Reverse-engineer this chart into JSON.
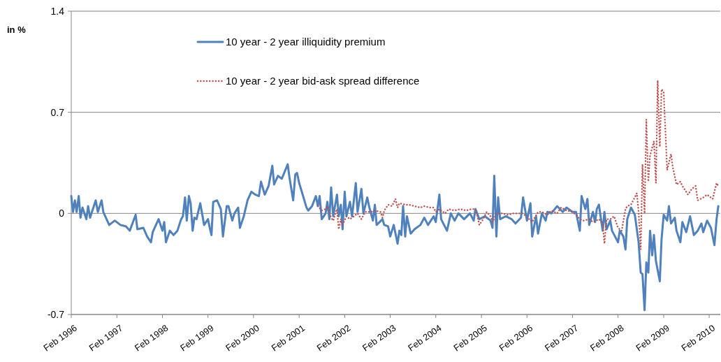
{
  "chart_data": {
    "type": "line",
    "ylabel": "in %",
    "xlim": [
      "1996-02-01",
      "2010-05-01"
    ],
    "ylim": [
      -0.7,
      1.4
    ],
    "yticks": [
      -0.7,
      0,
      0.7,
      1.4
    ],
    "xticks": [
      {
        "value": "1996-02-01",
        "label": "Feb 1996"
      },
      {
        "value": "1997-02-01",
        "label": "Feb 1997"
      },
      {
        "value": "1998-02-01",
        "label": "Feb 1998"
      },
      {
        "value": "1999-02-01",
        "label": "Feb 1999"
      },
      {
        "value": "2000-02-01",
        "label": "Feb 2000"
      },
      {
        "value": "2001-02-01",
        "label": "Feb 2001"
      },
      {
        "value": "2002-02-01",
        "label": "Feb 2002"
      },
      {
        "value": "2003-02-01",
        "label": "Feb 2003"
      },
      {
        "value": "2004-02-01",
        "label": "Feb 2004"
      },
      {
        "value": "2005-02-01",
        "label": "Feb 2005"
      },
      {
        "value": "2006-02-01",
        "label": "Feb 2006"
      },
      {
        "value": "2007-02-01",
        "label": "Feb 2007"
      },
      {
        "value": "2008-02-01",
        "label": "Feb 2008"
      },
      {
        "value": "2009-02-01",
        "label": "Feb 2009"
      },
      {
        "value": "2010-02-01",
        "label": "Feb 2010"
      }
    ],
    "grid": "y",
    "legend": "top",
    "series": [
      {
        "name": "10 year - 2 year illiquidity premium",
        "color": "#4f81bd",
        "line_style": "solid",
        "x": [
          "1996-02-01",
          "1996-02-15",
          "1996-03-01",
          "1996-03-15",
          "1996-04-01",
          "1996-04-15",
          "1996-05-01",
          "1996-06-01",
          "1996-06-15",
          "1996-07-01",
          "1996-08-15",
          "1996-09-01",
          "1996-10-01",
          "1996-10-15",
          "1996-12-01",
          "1997-01-15",
          "1997-03-01",
          "1997-04-15",
          "1997-05-15",
          "1997-07-01",
          "1997-07-15",
          "1997-09-01",
          "1997-10-01",
          "1997-11-01",
          "1997-11-15",
          "1998-01-01",
          "1998-02-01",
          "1998-02-15",
          "1998-03-01",
          "1998-04-01",
          "1998-05-01",
          "1998-06-01",
          "1998-07-01",
          "1998-07-15",
          "1998-08-01",
          "1998-08-15",
          "1998-09-01",
          "1998-09-15",
          "1998-10-01",
          "1998-10-15",
          "1998-11-01",
          "1998-12-01",
          "1999-01-01",
          "1999-02-01",
          "1999-02-15",
          "1999-03-01",
          "1999-03-15",
          "1999-04-15",
          "1999-05-15",
          "1999-06-01",
          "1999-07-01",
          "1999-07-15",
          "1999-08-15",
          "1999-09-01",
          "1999-10-01",
          "1999-10-15",
          "1999-11-15",
          "1999-12-15",
          "2000-01-15",
          "2000-02-15",
          "2000-03-15",
          "2000-04-01",
          "2000-05-01",
          "2000-06-01",
          "2000-07-01",
          "2000-07-15",
          "2000-08-15",
          "2000-09-15",
          "2000-11-01",
          "2000-11-15",
          "2000-12-15",
          "2001-01-01",
          "2001-01-15",
          "2001-02-01",
          "2001-03-01",
          "2001-04-01",
          "2001-04-15",
          "2001-05-15",
          "2001-06-15",
          "2001-07-01",
          "2001-07-15",
          "2001-08-01",
          "2001-09-01",
          "2001-09-15",
          "2001-10-01",
          "2001-10-15",
          "2001-11-01",
          "2001-12-01",
          "2001-12-15",
          "2002-01-01",
          "2002-01-15",
          "2002-02-01",
          "2002-02-15",
          "2002-03-15",
          "2002-04-01",
          "2002-05-01",
          "2002-05-15",
          "2002-06-15",
          "2002-07-01",
          "2002-08-01",
          "2002-08-15",
          "2002-09-15",
          "2002-10-01",
          "2002-10-15",
          "2002-12-01",
          "2002-12-15",
          "2003-01-15",
          "2003-02-01",
          "2003-03-01",
          "2003-04-01",
          "2003-04-15",
          "2003-05-01",
          "2003-05-15",
          "2003-06-01",
          "2003-06-15",
          "2003-07-15",
          "2003-08-15",
          "2003-10-01",
          "2003-11-01",
          "2003-12-01",
          "2004-01-15",
          "2004-02-01",
          "2004-03-01",
          "2004-03-15",
          "2004-05-01",
          "2004-06-01",
          "2004-07-01",
          "2004-08-01",
          "2004-09-15",
          "2004-11-01",
          "2004-12-01",
          "2004-12-15",
          "2005-01-15",
          "2005-03-01",
          "2005-04-15",
          "2005-05-01",
          "2005-05-15",
          "2005-06-01",
          "2005-06-15",
          "2005-07-01",
          "2005-08-15",
          "2005-10-01",
          "2005-11-01",
          "2005-12-15",
          "2006-01-01",
          "2006-02-01",
          "2006-03-01",
          "2006-03-15",
          "2006-04-15",
          "2006-05-01",
          "2006-06-01",
          "2006-07-01",
          "2006-07-15",
          "2006-08-15",
          "2006-10-01",
          "2006-11-15",
          "2006-12-15",
          "2007-02-01",
          "2007-03-01",
          "2007-04-01",
          "2007-04-15",
          "2007-05-15",
          "2007-06-01",
          "2007-06-15",
          "2007-07-15",
          "2007-08-01",
          "2007-08-15",
          "2007-09-01",
          "2007-10-01",
          "2007-10-15",
          "2007-11-01",
          "2007-12-01",
          "2007-12-15",
          "2008-02-01",
          "2008-02-15",
          "2008-03-15",
          "2008-04-01",
          "2008-04-15",
          "2008-05-15",
          "2008-06-15",
          "2008-07-15",
          "2008-08-01",
          "2008-08-15",
          "2008-09-01",
          "2008-09-15",
          "2008-10-01",
          "2008-10-15",
          "2008-11-01",
          "2008-11-15",
          "2008-12-01",
          "2009-01-01",
          "2009-01-15",
          "2009-02-01",
          "2009-03-01",
          "2009-03-15",
          "2009-04-01",
          "2009-05-01",
          "2009-05-15",
          "2009-06-15",
          "2009-07-01",
          "2009-08-01",
          "2009-09-01",
          "2009-10-01",
          "2009-11-01",
          "2009-12-01",
          "2009-12-15",
          "2010-01-15",
          "2010-02-15",
          "2010-03-15",
          "2010-04-01",
          "2010-04-15"
        ],
        "values": [
          0.12,
          0.01,
          0.09,
          0.01,
          0.12,
          -0.03,
          0.04,
          -0.04,
          0.05,
          -0.03,
          0.09,
          0.01,
          0.09,
          0.01,
          -0.08,
          -0.05,
          -0.08,
          -0.09,
          -0.12,
          -0.01,
          -0.11,
          -0.1,
          -0.16,
          -0.2,
          -0.13,
          -0.04,
          -0.12,
          -0.06,
          -0.2,
          -0.12,
          -0.15,
          -0.12,
          -0.04,
          -0.02,
          0.11,
          -0.05,
          0.12,
          0.07,
          -0.12,
          -0.03,
          -0.04,
          0.07,
          -0.08,
          -0.04,
          -0.1,
          -0.15,
          0.08,
          0.09,
          0.03,
          -0.16,
          0.05,
          0.05,
          -0.05,
          0.0,
          0.04,
          -0.1,
          -0.02,
          0.09,
          0.15,
          0.13,
          0.12,
          0.22,
          0.13,
          0.19,
          0.33,
          0.2,
          0.26,
          0.24,
          0.34,
          0.25,
          0.09,
          0.27,
          0.28,
          0.21,
          0.13,
          0.04,
          0.02,
          0.05,
          0.12,
          0.05,
          0.12,
          -0.04,
          0.0,
          0.08,
          -0.04,
          0.18,
          -0.02,
          0.13,
          -0.02,
          0.06,
          -0.11,
          0.15,
          -0.02,
          0.08,
          -0.02,
          0.21,
          0.01,
          0.17,
          0.0,
          0.11,
          0.05,
          -0.05,
          0.06,
          -0.08,
          -0.04,
          -0.08,
          -0.09,
          -0.16,
          -0.08,
          -0.21,
          -0.12,
          -0.15,
          0.05,
          -0.16,
          -0.02,
          -0.14,
          -0.11,
          -0.08,
          -0.03,
          -0.08,
          -0.02,
          -0.06,
          0.13,
          -0.04,
          -0.12,
          0.0,
          -0.05,
          0.0,
          -0.04,
          0.0,
          -0.05,
          0.03,
          -0.04,
          -0.02,
          -0.05,
          -0.1,
          0.26,
          -0.16,
          0.11,
          -0.04,
          -0.02,
          -0.04,
          -0.07,
          -0.03,
          0.11,
          -0.05,
          0.07,
          -0.16,
          -0.02,
          -0.14,
          0.0,
          -0.05,
          0.01,
          0.0,
          0.05,
          0.01,
          0.04,
          0.01,
          0.01,
          -0.12,
          0.12,
          0.03,
          0.1,
          -0.08,
          0.01,
          -0.06,
          0.03,
          0.06,
          -0.12,
          0.01,
          -0.11,
          -0.05,
          -0.12,
          -0.2,
          -0.12,
          -0.16,
          -0.25,
          -0.04,
          0.04,
          -0.01,
          -0.2,
          -0.41,
          -0.42,
          -0.67,
          -0.34,
          -0.41,
          -0.12,
          -0.29,
          -0.15,
          -0.33,
          -0.47,
          -0.18,
          -0.01,
          -0.05,
          0.05,
          -0.07,
          -0.03,
          -0.12,
          -0.2,
          -0.06,
          -0.13,
          -0.02,
          -0.15,
          -0.12,
          -0.07,
          -0.13,
          -0.05,
          -0.1,
          -0.22,
          -0.04,
          0.05
        ]
      },
      {
        "name": "10 year - 2 year bid-ask spread difference",
        "color": "#c0504d",
        "line_style": "dotted",
        "x": [
          "2001-07-01",
          "2001-08-01",
          "2001-09-01",
          "2001-09-15",
          "2001-10-15",
          "2001-11-01",
          "2001-12-01",
          "2001-12-15",
          "2002-01-01",
          "2002-01-15",
          "2002-02-15",
          "2002-03-15",
          "2002-04-15",
          "2002-05-15",
          "2002-06-15",
          "2002-07-15",
          "2002-09-01",
          "2002-10-01",
          "2002-11-15",
          "2002-12-01",
          "2002-12-15",
          "2003-01-15",
          "2003-02-15",
          "2003-03-15",
          "2003-04-01",
          "2003-04-15",
          "2003-06-01",
          "2003-07-01",
          "2003-08-15",
          "2003-10-01",
          "2003-11-01",
          "2003-12-15",
          "2004-01-15",
          "2004-02-01",
          "2004-03-01",
          "2004-04-15",
          "2004-05-15",
          "2004-07-01",
          "2004-08-15",
          "2004-10-01",
          "2004-11-15",
          "2004-12-15",
          "2005-01-01",
          "2005-01-15",
          "2005-02-15",
          "2005-03-15",
          "2005-04-15",
          "2005-05-01",
          "2005-06-01",
          "2005-07-15",
          "2005-09-01",
          "2005-10-15",
          "2005-12-15",
          "2006-01-01",
          "2006-03-15",
          "2006-05-01",
          "2006-06-01",
          "2006-07-15",
          "2006-08-15",
          "2006-10-01",
          "2006-11-01",
          "2006-12-15",
          "2007-02-01",
          "2007-03-01",
          "2007-04-01",
          "2007-05-01",
          "2007-06-15",
          "2007-07-15",
          "2007-09-01",
          "2007-10-01",
          "2007-10-15",
          "2007-11-01",
          "2007-12-01",
          "2008-01-01",
          "2008-02-01",
          "2008-03-01",
          "2008-04-01",
          "2008-04-15",
          "2008-05-15",
          "2008-07-01",
          "2008-07-15",
          "2008-08-01",
          "2008-08-15",
          "2008-09-01",
          "2008-09-15",
          "2008-10-01",
          "2008-10-15",
          "2008-11-15",
          "2008-12-01",
          "2008-12-15",
          "2009-01-01",
          "2009-01-15",
          "2009-02-01",
          "2009-03-01",
          "2009-04-01",
          "2009-04-15",
          "2009-05-15",
          "2009-06-15",
          "2009-07-01",
          "2009-08-15",
          "2009-09-15",
          "2009-10-15",
          "2009-11-01",
          "2009-12-15",
          "2010-01-15",
          "2010-03-01",
          "2010-04-01",
          "2010-04-15"
        ],
        "values": [
          0.05,
          0.02,
          0.03,
          0.05,
          -0.03,
          -0.05,
          0.03,
          -0.11,
          -0.04,
          -0.08,
          -0.02,
          -0.04,
          -0.02,
          0.0,
          -0.04,
          0.01,
          0.01,
          0.02,
          0.01,
          -0.03,
          0.02,
          0.06,
          0.05,
          0.1,
          0.04,
          0.07,
          0.06,
          0.06,
          0.05,
          0.04,
          0.05,
          0.04,
          0.04,
          0.01,
          0.03,
          0.0,
          0.03,
          0.02,
          0.03,
          0.02,
          0.03,
          0.03,
          -0.02,
          -0.08,
          -0.04,
          0.01,
          -0.02,
          -0.06,
          0.0,
          0.0,
          -0.01,
          0.0,
          0.0,
          0.0,
          -0.06,
          0.01,
          0.01,
          -0.01,
          0.02,
          0.0,
          0.04,
          0.02,
          0.01,
          -0.01,
          -0.04,
          -0.05,
          -0.04,
          -0.06,
          -0.04,
          -0.07,
          -0.21,
          -0.04,
          -0.04,
          -0.02,
          -0.1,
          -0.12,
          0.03,
          0.05,
          0.06,
          0.14,
          0.01,
          -0.25,
          0.34,
          0.0,
          0.65,
          0.22,
          0.4,
          0.5,
          0.21,
          0.92,
          0.46,
          0.86,
          0.84,
          0.3,
          0.41,
          0.32,
          0.2,
          0.22,
          0.19,
          0.13,
          0.17,
          0.19,
          0.09,
          0.11,
          0.13,
          0.1,
          0.21,
          0.19
        ]
      }
    ]
  }
}
